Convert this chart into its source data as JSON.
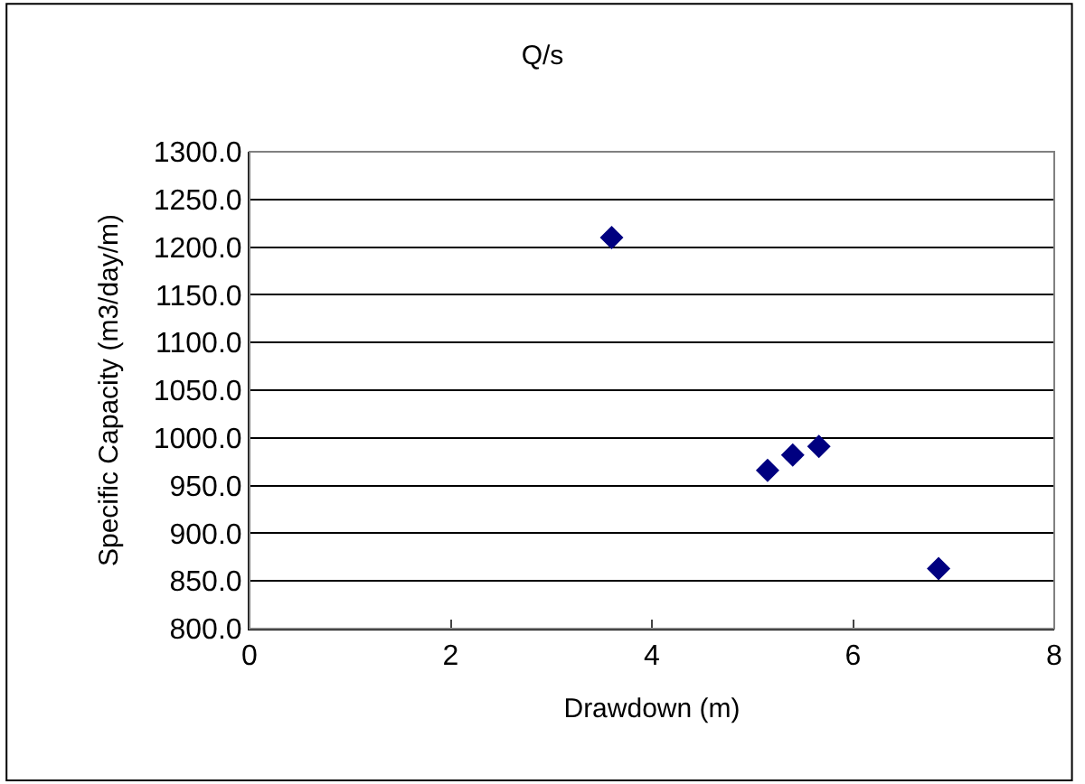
{
  "chart_data": {
    "type": "scatter",
    "title": "Q/s",
    "xlabel": "Drawdown (m)",
    "ylabel": "Specific Capacity (m3/day/m)",
    "x": [
      3.6,
      5.15,
      5.4,
      5.66,
      6.85
    ],
    "series": [
      {
        "color": "#000080",
        "values": [
          1210,
          966,
          982,
          991,
          863
        ]
      }
    ],
    "marker": "diamond",
    "grid": "y",
    "xlim": [
      0,
      8
    ],
    "xticks": [
      0,
      2,
      4,
      6,
      8
    ],
    "ylim": [
      800,
      1300
    ],
    "yticks": [
      {
        "value": 800,
        "label": "800.0"
      },
      {
        "value": 850,
        "label": "850.0"
      },
      {
        "value": 900,
        "label": "900.0"
      },
      {
        "value": 950,
        "label": "950.0"
      },
      {
        "value": 1000,
        "label": "1000.0"
      },
      {
        "value": 1050,
        "label": "1050.0"
      },
      {
        "value": 1100,
        "label": "1100.0"
      },
      {
        "value": 1150,
        "label": "1150.0"
      },
      {
        "value": 1200,
        "label": "1200.0"
      },
      {
        "value": 1250,
        "label": "1250.0"
      },
      {
        "value": 1300,
        "label": "1300.0"
      }
    ]
  }
}
